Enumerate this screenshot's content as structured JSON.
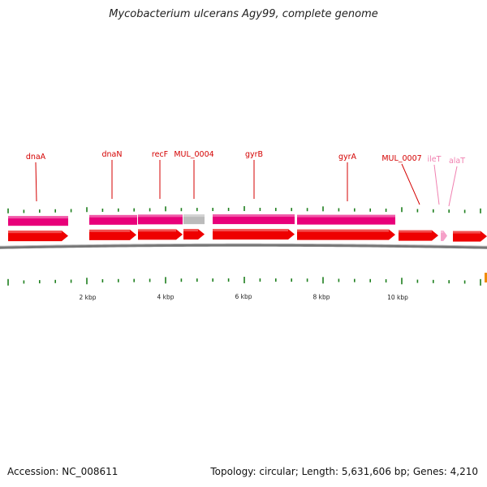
{
  "title": "Mycobacterium ulcerans Agy99, complete genome",
  "footer": {
    "accession": "Accession: NC_008611",
    "summary": "Topology: circular; Length: 5,631,606 bp; Genes: 4,210"
  },
  "genes": [
    {
      "name": "dnaA",
      "color": "#e8007a",
      "faint": false
    },
    {
      "name": "dnaN",
      "color": "#e8007a",
      "faint": false
    },
    {
      "name": "recF",
      "color": "#e8007a",
      "faint": false
    },
    {
      "name": "MUL_0004",
      "color": "#bbbbbb",
      "faint": false
    },
    {
      "name": "gyrB",
      "color": "#e8007a",
      "faint": false
    },
    {
      "name": "gyrA",
      "color": "#e8007a",
      "faint": false
    },
    {
      "name": "MUL_0007",
      "color": "#e8007a",
      "faint": false
    },
    {
      "name": "ileT",
      "color": "#f080b0",
      "faint": true
    },
    {
      "name": "alaT",
      "color": "#f080b0",
      "faint": true
    }
  ],
  "scale": [
    "2 kbp",
    "4 kbp",
    "6 kbp",
    "8 kbp",
    "10 kbp"
  ],
  "colors": {
    "cds_arrow": "#ee0000",
    "gene_bar": "#e8007a",
    "hypothetical_bar": "#bbbbbb",
    "tick": "#1e7f1e",
    "backbone": "#777777",
    "origin": "#f08c00"
  }
}
